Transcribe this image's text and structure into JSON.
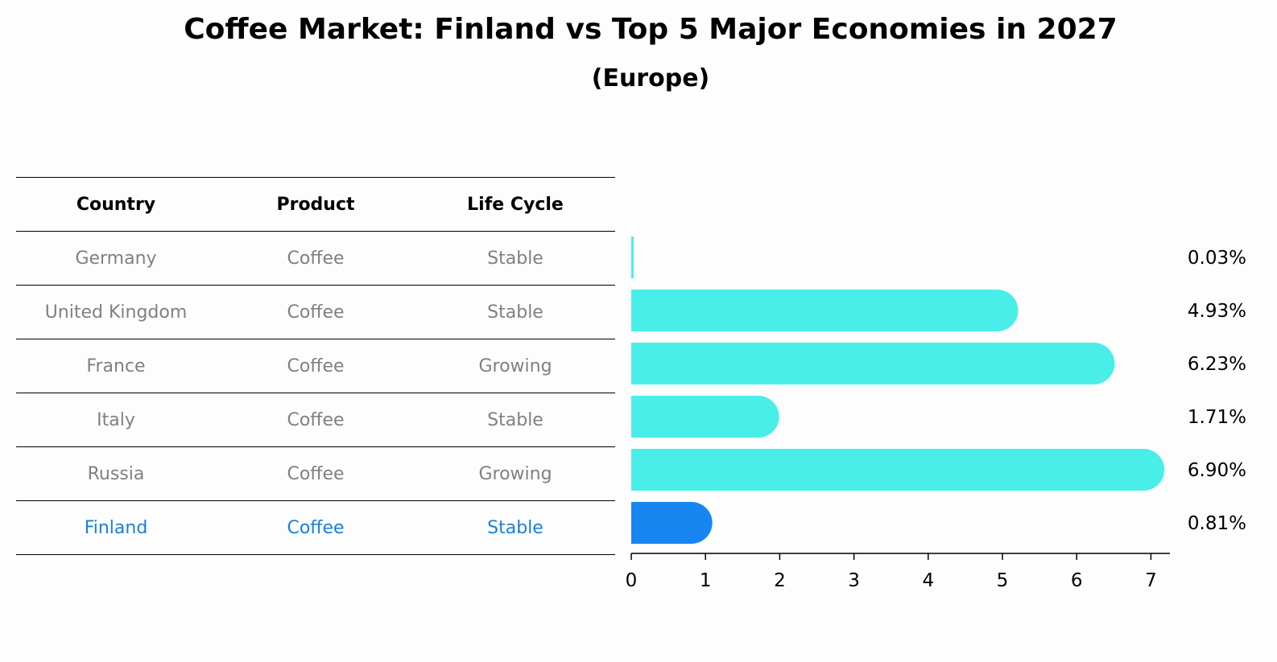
{
  "title": "Coffee Market: Finland vs Top 5 Major Economies in 2027",
  "subtitle": "(Europe)",
  "table": {
    "headers": [
      "Country",
      "Product",
      "Life Cycle"
    ],
    "rows": [
      {
        "country": "Germany",
        "product": "Coffee",
        "life_cycle": "Stable"
      },
      {
        "country": "United Kingdom",
        "product": "Coffee",
        "life_cycle": "Stable"
      },
      {
        "country": "France",
        "product": "Coffee",
        "life_cycle": "Growing"
      },
      {
        "country": "Italy",
        "product": "Coffee",
        "life_cycle": "Stable"
      },
      {
        "country": "Russia",
        "product": "Coffee",
        "life_cycle": "Growing"
      },
      {
        "country": "Finland",
        "product": "Coffee",
        "life_cycle": "Stable"
      }
    ]
  },
  "chart_data": {
    "type": "bar",
    "orientation": "horizontal",
    "categories": [
      "Germany",
      "United Kingdom",
      "France",
      "Italy",
      "Russia",
      "Finland"
    ],
    "values": [
      0.03,
      4.93,
      6.23,
      1.71,
      6.9,
      0.81
    ],
    "labels": [
      "0.03%",
      "4.93%",
      "6.23%",
      "1.71%",
      "6.90%",
      "0.81%"
    ],
    "xlim": [
      0,
      7.3
    ],
    "xticks": [
      0,
      1,
      2,
      3,
      4,
      5,
      6,
      7
    ],
    "highlight_index": 5,
    "colors": {
      "bar": "#4aeee9",
      "highlight": "#1786f0",
      "highlight_text": "#1a7fdc",
      "muted_text": "#808080"
    }
  }
}
